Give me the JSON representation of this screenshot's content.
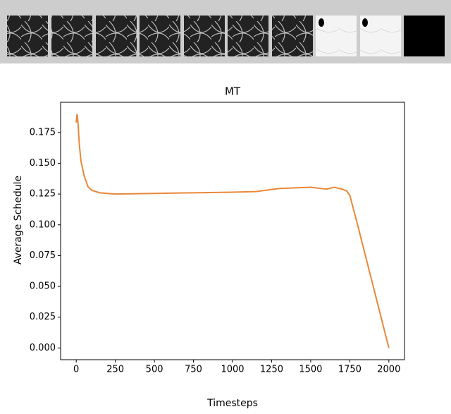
{
  "chart_data": {
    "type": "line",
    "title": "MT",
    "xlabel": "Timesteps",
    "ylabel": "Average Schedule",
    "x": [
      0,
      5,
      10,
      20,
      30,
      50,
      75,
      100,
      150,
      250,
      500,
      750,
      1000,
      1150,
      1300,
      1500,
      1600,
      1650,
      1700,
      1730,
      1750,
      1800,
      1900,
      2000
    ],
    "series": [
      {
        "name": "MT",
        "color": "#e8883a",
        "values": [
          0.183,
          0.19,
          0.185,
          0.165,
          0.152,
          0.14,
          0.131,
          0.128,
          0.126,
          0.125,
          0.1255,
          0.126,
          0.1265,
          0.127,
          0.1295,
          0.1305,
          0.129,
          0.1305,
          0.129,
          0.1275,
          0.124,
          0.1,
          0.05,
          0.0
        ]
      }
    ],
    "xlim": [
      -100,
      2100
    ],
    "ylim": [
      -0.0095,
      0.1995
    ],
    "xticks": [
      0,
      250,
      500,
      750,
      1000,
      1250,
      1500,
      1750,
      2000
    ],
    "yticks": [
      {
        "value": 0,
        "label": "0.000"
      },
      {
        "value": 0.025,
        "label": "0.025"
      },
      {
        "value": 0.05,
        "label": "0.050"
      },
      {
        "value": 0.075,
        "label": "0.075"
      },
      {
        "value": 0.1,
        "label": "0.100"
      },
      {
        "value": 0.125,
        "label": "0.125"
      },
      {
        "value": 0.15,
        "label": "0.150"
      },
      {
        "value": 0.175,
        "label": "0.175"
      }
    ],
    "grid": false
  }
}
